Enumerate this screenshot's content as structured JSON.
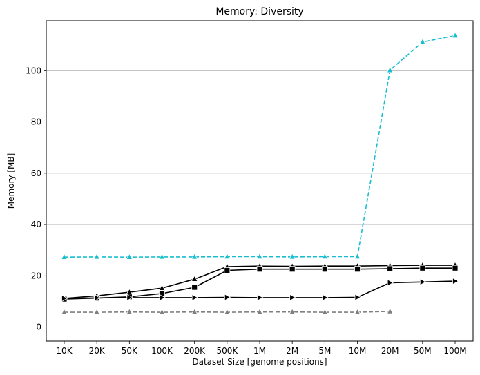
{
  "chart_data": {
    "type": "line",
    "title": "Memory:  Diversity",
    "xlabel": "Dataset Size  [genome positions]",
    "ylabel": "Memory  [MB]",
    "categories": [
      "10K",
      "20K",
      "50K",
      "100K",
      "200K",
      "500K",
      "1M",
      "2M",
      "5M",
      "10M",
      "20M",
      "50M",
      "100M"
    ],
    "yticks": [
      0,
      20,
      40,
      60,
      80,
      100
    ],
    "ylim": [
      -5.5,
      119.5
    ],
    "grid": "horizontal",
    "series": [
      {
        "color": "#17becf",
        "dashed": true,
        "marker": "triangle-up",
        "values": [
          27.3,
          27.4,
          27.3,
          27.4,
          27.4,
          27.5,
          27.5,
          27.4,
          27.5,
          27.5,
          100.2,
          111.2,
          113.7
        ]
      },
      {
        "color": "#000000",
        "dashed": false,
        "marker": "triangle-up",
        "values": [
          11.2,
          12.2,
          13.6,
          15.2,
          18.7,
          23.6,
          23.8,
          23.7,
          23.8,
          23.8,
          24.0,
          24.1,
          24.1
        ]
      },
      {
        "color": "#000000",
        "dashed": false,
        "marker": "square",
        "values": [
          10.9,
          11.3,
          11.8,
          13.1,
          15.5,
          22.1,
          22.6,
          22.6,
          22.6,
          22.6,
          22.8,
          23.0,
          23.0
        ]
      },
      {
        "color": "#000000",
        "dashed": false,
        "marker": "triangle-right",
        "values": [
          11.2,
          11.4,
          11.5,
          11.5,
          11.5,
          11.6,
          11.5,
          11.5,
          11.5,
          11.6,
          17.3,
          17.6,
          17.9
        ]
      },
      {
        "color": "#7f7f7f",
        "dashed": true,
        "marker": "triangle-up",
        "values": [
          5.8,
          5.8,
          5.9,
          5.8,
          5.9,
          5.8,
          5.9,
          5.9,
          5.8,
          5.8,
          6.1,
          null,
          null
        ]
      }
    ]
  }
}
